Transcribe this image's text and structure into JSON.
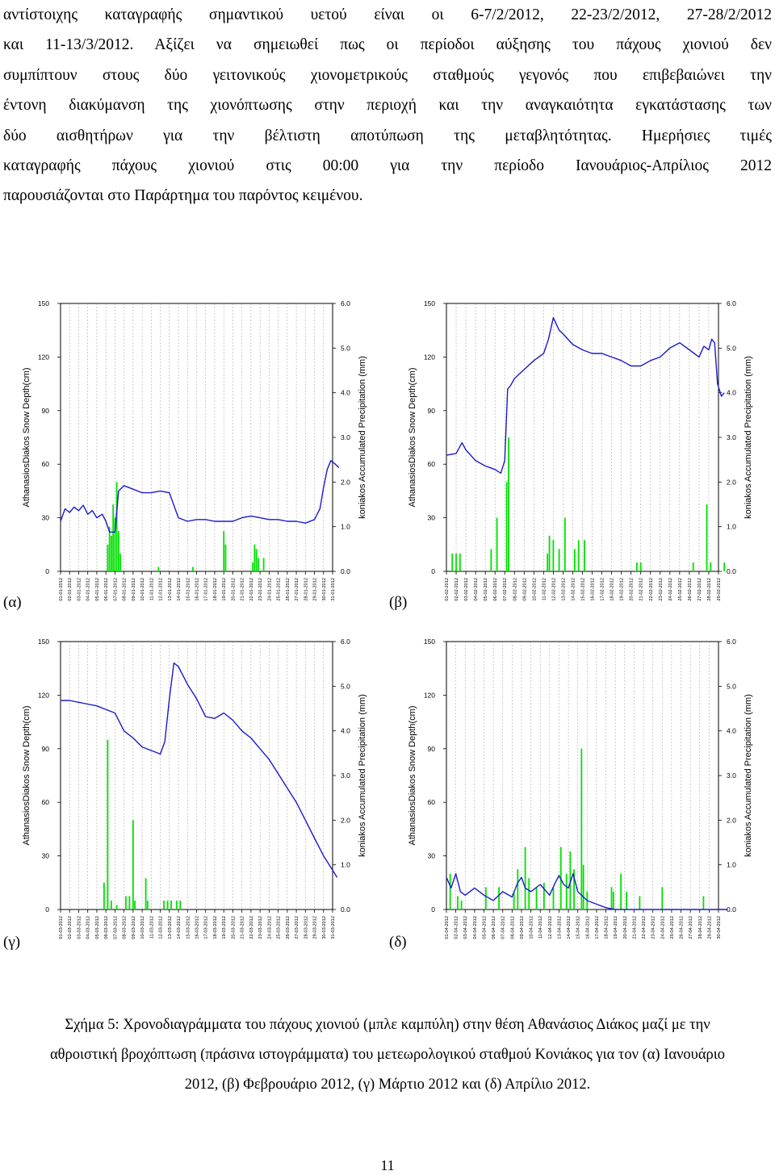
{
  "text": {
    "lines": [
      "αντίστοιχης καταγραφής σημαντικού υετού είναι οι 6-7/2/2012, 22-23/2/2012, 27-28/2/2012",
      "και 11-13/3/2012. Αξίζει να σημειωθεί πως οι περίοδοι αύξησης του πάχους χιονιού δεν",
      "συμπίπτουν στους δύο γειτονικούς χιονομετρικούς σταθμούς γεγονός που επιβεβαιώνει την",
      "έντονη διακύμανση της χιονόπτωσης στην περιοχή και την αναγκαιότητα εγκατάστασης των",
      "δύο αισθητήρων για την βέλτιστη αποτύπωση της μεταβλητότητας. Ημερήσιες τιμές",
      "καταγραφής πάχους χιονιού στις 00:00 για την περίοδο Ιανουάριος-Απρίλιος 2012",
      "παρουσιάζονται στο Παράρτημα του παρόντος κειμένου."
    ]
  },
  "panel_labels": [
    "(α)",
    "(β)",
    "(γ)",
    "(δ)"
  ],
  "caption": {
    "lines": [
      "Σχήμα 5: Χρονοδιαγράμματα του πάχους χιονιού (μπλε καμπύλη) στην θέση Αθανάσιος Διάκος μαζί με την",
      "αθροιστική βροχόπτωση (πράσινα ιστογράμματα) του μετεωρολογικού σταθμού Κονιάκος για τον (α) Ιανουάριο",
      "2012, (β) Φεβρουάριο 2012, (γ) Μάρτιο 2012 και (δ) Απρίλιο 2012."
    ]
  },
  "page_number": "11",
  "colors": {
    "snow": "#1a1acc",
    "precip": "#00e000"
  },
  "chart_data": [
    {
      "type": "line",
      "panel": "(α)",
      "ylabel": "AthanasiosDiakos Snow Depth(cm)",
      "y2label": "koniakos Accumulated Precipitation (mm)",
      "ylim": [
        0,
        150
      ],
      "y2lim": [
        0.0,
        6.0
      ],
      "yticks": [
        "0",
        "30",
        "60",
        "90",
        "120",
        "150"
      ],
      "y2ticks": [
        "0.0",
        "1.0",
        "2.0",
        "3.0",
        "4.0",
        "5.0",
        "6.0"
      ],
      "xticks": [
        "01-01-2012",
        "02-01-2012",
        "03-01-2012",
        "04-01-2012",
        "05-01-2012",
        "06-01-2012",
        "07-01-2012",
        "08-01-2012",
        "09-01-2012",
        "10-01-2012",
        "11-01-2012",
        "12-01-2012",
        "13-01-2012",
        "14-01-2012",
        "15-01-2012",
        "16-01-2012",
        "17-01-2012",
        "18-01-2012",
        "19-01-2012",
        "20-01-2012",
        "21-01-2012",
        "22-01-2012",
        "23-01-2012",
        "24-01-2012",
        "25-01-2012",
        "26-01-2012",
        "27-01-2012",
        "28-01-2012",
        "29-01-2012",
        "30-01-2012",
        "31-01-2012"
      ],
      "snow_depth": [
        [
          0,
          28
        ],
        [
          0.5,
          35
        ],
        [
          1,
          33
        ],
        [
          1.5,
          36
        ],
        [
          2,
          34
        ],
        [
          2.5,
          37
        ],
        [
          3,
          32
        ],
        [
          3.5,
          34
        ],
        [
          4,
          30
        ],
        [
          4.6,
          32
        ],
        [
          5,
          28
        ],
        [
          5.4,
          22
        ],
        [
          6,
          22
        ],
        [
          6.4,
          45
        ],
        [
          7,
          48
        ],
        [
          8,
          46
        ],
        [
          9,
          44
        ],
        [
          10,
          44
        ],
        [
          11,
          45
        ],
        [
          12,
          44
        ],
        [
          12.5,
          37
        ],
        [
          13,
          30
        ],
        [
          14,
          28
        ],
        [
          15,
          29
        ],
        [
          16,
          29
        ],
        [
          17,
          28
        ],
        [
          18,
          28
        ],
        [
          19,
          28
        ],
        [
          20,
          30
        ],
        [
          21,
          31
        ],
        [
          22,
          30
        ],
        [
          23,
          29
        ],
        [
          24,
          29
        ],
        [
          25,
          28
        ],
        [
          26,
          28
        ],
        [
          27,
          27
        ],
        [
          28,
          29
        ],
        [
          28.6,
          35
        ],
        [
          29,
          47
        ],
        [
          29.4,
          57
        ],
        [
          29.8,
          62
        ],
        [
          30.3,
          60
        ],
        [
          30.7,
          58
        ]
      ],
      "precipitation": [
        [
          5.2,
          0.6
        ],
        [
          5.4,
          1.0
        ],
        [
          5.6,
          0.8
        ],
        [
          5.8,
          1.5
        ],
        [
          6,
          1.2
        ],
        [
          6.2,
          2.0
        ],
        [
          6.4,
          0.9
        ],
        [
          6.6,
          0.4
        ],
        [
          10.8,
          0.1
        ],
        [
          14.6,
          0.1
        ],
        [
          18,
          0.9
        ],
        [
          18.2,
          0.6
        ],
        [
          21.2,
          0.2
        ],
        [
          21.4,
          0.6
        ],
        [
          21.6,
          0.5
        ],
        [
          21.8,
          0.3
        ],
        [
          22.4,
          0.3
        ]
      ]
    },
    {
      "type": "line",
      "panel": "(β)",
      "ylabel": "AthanasiosDiakos Snow Depth(cm)",
      "y2label": "koniakos Accumulated Precipitation (mm)",
      "ylim": [
        0,
        150
      ],
      "y2lim": [
        0.0,
        6.0
      ],
      "yticks": [
        "0",
        "30",
        "60",
        "90",
        "120",
        "150"
      ],
      "y2ticks": [
        "0.0",
        "1.0",
        "2.0",
        "3.0",
        "4.0",
        "5.0",
        "6.0"
      ],
      "xticks": [
        "01-02-2012",
        "02-02-2012",
        "03-02-2012",
        "04-02-2012",
        "05-02-2012",
        "06-02-2012",
        "07-02-2012",
        "08-02-2012",
        "09-02-2012",
        "10-02-2012",
        "11-02-2012",
        "12-02-2012",
        "13-02-2012",
        "14-02-2012",
        "15-02-2012",
        "16-02-2012",
        "17-02-2012",
        "18-02-2012",
        "19-02-2012",
        "20-02-2012",
        "21-02-2012",
        "22-02-2012",
        "23-02-2012",
        "24-02-2012",
        "25-02-2012",
        "26-02-2012",
        "27-02-2012",
        "28-02-2012",
        "29-02-2012"
      ],
      "snow_depth": [
        [
          0,
          65
        ],
        [
          1,
          66
        ],
        [
          1.6,
          72
        ],
        [
          2,
          68
        ],
        [
          3,
          62
        ],
        [
          4,
          59
        ],
        [
          5,
          57
        ],
        [
          5.6,
          55
        ],
        [
          6,
          62
        ],
        [
          6.3,
          102
        ],
        [
          6.6,
          104
        ],
        [
          7,
          108
        ],
        [
          8,
          113
        ],
        [
          9,
          118
        ],
        [
          10,
          122
        ],
        [
          10.5,
          130
        ],
        [
          11,
          142
        ],
        [
          11.6,
          135
        ],
        [
          12,
          133
        ],
        [
          13,
          127
        ],
        [
          14,
          124
        ],
        [
          15,
          122
        ],
        [
          16,
          122
        ],
        [
          17,
          120
        ],
        [
          18,
          118
        ],
        [
          19,
          115
        ],
        [
          20,
          115
        ],
        [
          21,
          118
        ],
        [
          22,
          120
        ],
        [
          23,
          125
        ],
        [
          24,
          128
        ],
        [
          25,
          124
        ],
        [
          26,
          120
        ],
        [
          26.5,
          126
        ],
        [
          27,
          124
        ],
        [
          27.3,
          130
        ],
        [
          27.6,
          128
        ],
        [
          27.9,
          105
        ],
        [
          28.3,
          98
        ],
        [
          28.6,
          100
        ]
      ],
      "precipitation": [
        [
          0.6,
          0.4
        ],
        [
          1,
          0.4
        ],
        [
          1.4,
          0.4
        ],
        [
          4.6,
          0.5
        ],
        [
          5.2,
          1.2
        ],
        [
          6.2,
          2.0
        ],
        [
          6.4,
          3.0
        ],
        [
          10.4,
          0.4
        ],
        [
          10.6,
          0.8
        ],
        [
          11,
          0.7
        ],
        [
          11.6,
          0.5
        ],
        [
          12.2,
          1.2
        ],
        [
          13.2,
          0.5
        ],
        [
          13.6,
          0.7
        ],
        [
          14.2,
          0.7
        ],
        [
          19.6,
          0.2
        ],
        [
          20,
          0.2
        ],
        [
          25.4,
          0.2
        ],
        [
          26.8,
          1.5
        ],
        [
          27.2,
          0.2
        ],
        [
          28.6,
          0.2
        ]
      ]
    },
    {
      "type": "line",
      "panel": "(γ)",
      "ylabel": "AthanasiosDiakos Snow Depth(cm)",
      "y2label": "koniakos Accumulated Precipitation (mm)",
      "ylim": [
        0,
        150
      ],
      "y2lim": [
        0.0,
        6.0
      ],
      "yticks": [
        "0",
        "30",
        "60",
        "90",
        "120",
        "150"
      ],
      "y2ticks": [
        "0.0",
        "1.0",
        "2.0",
        "3.0",
        "4.0",
        "5.0",
        "6.0"
      ],
      "xticks": [
        "01-03-2012",
        "02-03-2012",
        "03-03-2012",
        "04-03-2012",
        "05-03-2012",
        "06-03-2012",
        "07-03-2012",
        "08-03-2012",
        "09-03-2012",
        "10-03-2012",
        "11-03-2012",
        "12-03-2012",
        "13-03-2012",
        "14-03-2012",
        "15-03-2012",
        "16-03-2012",
        "17-03-2012",
        "18-03-2012",
        "19-03-2012",
        "20-03-2012",
        "21-03-2012",
        "22-03-2012",
        "23-03-2012",
        "24-03-2012",
        "25-03-2012",
        "26-03-2012",
        "27-03-2012",
        "28-03-2012",
        "29-03-2012",
        "30-03-2012",
        "31-03-2012"
      ],
      "snow_depth": [
        [
          0,
          117
        ],
        [
          1,
          117
        ],
        [
          2,
          116
        ],
        [
          3,
          115
        ],
        [
          4,
          114
        ],
        [
          5,
          112
        ],
        [
          6,
          110
        ],
        [
          7,
          100
        ],
        [
          8,
          96
        ],
        [
          9,
          91
        ],
        [
          10,
          89
        ],
        [
          11,
          87
        ],
        [
          11.5,
          94
        ],
        [
          12,
          118
        ],
        [
          12.5,
          138
        ],
        [
          13,
          136
        ],
        [
          14,
          126
        ],
        [
          15,
          118
        ],
        [
          16,
          108
        ],
        [
          17,
          107
        ],
        [
          18,
          110
        ],
        [
          19,
          106
        ],
        [
          20,
          100
        ],
        [
          21,
          96
        ],
        [
          22,
          90
        ],
        [
          23,
          84
        ],
        [
          24,
          76
        ],
        [
          25,
          68
        ],
        [
          26,
          60
        ],
        [
          27,
          50
        ],
        [
          28,
          40
        ],
        [
          29,
          30
        ],
        [
          30,
          22
        ],
        [
          30.5,
          18
        ]
      ],
      "precipitation": [
        [
          4.8,
          0.6
        ],
        [
          5.2,
          3.8
        ],
        [
          5.6,
          0.2
        ],
        [
          6.2,
          0.1
        ],
        [
          7.2,
          0.3
        ],
        [
          7.6,
          0.3
        ],
        [
          8,
          2.0
        ],
        [
          8.2,
          0.2
        ],
        [
          9.4,
          0.7
        ],
        [
          9.6,
          0.2
        ],
        [
          11.4,
          0.2
        ],
        [
          11.8,
          0.2
        ],
        [
          12.2,
          0.2
        ],
        [
          12.8,
          0.2
        ],
        [
          13.2,
          0.2
        ]
      ]
    },
    {
      "type": "line",
      "panel": "(δ)",
      "ylabel": "AthanasiosDiakos Snow Depth(cm)",
      "y2label": "koniakos Accumulated Precipitation (mm)",
      "ylim": [
        0,
        150
      ],
      "y2lim": [
        0.0,
        6.0
      ],
      "yticks": [
        "0",
        "30",
        "60",
        "90",
        "120",
        "150"
      ],
      "y2ticks": [
        "0.0",
        "1.0",
        "2.0",
        "3.0",
        "4.0",
        "5.0",
        "6.0"
      ],
      "xticks": [
        "01-04-2012",
        "02-04-2012",
        "03-04-2012",
        "04-04-2012",
        "05-04-2012",
        "06-04-2012",
        "07-04-2012",
        "08-04-2012",
        "09-04-2012",
        "10-04-2012",
        "11-04-2012",
        "12-04-2012",
        "13-04-2012",
        "14-04-2012",
        "15-04-2012",
        "16-04-2012",
        "17-04-2012",
        "18-04-2012",
        "19-04-2012",
        "20-04-2012",
        "21-04-2012",
        "22-04-2012",
        "23-04-2012",
        "24-04-2012",
        "25-04-2012",
        "26-04-2012",
        "27-04-2012",
        "28-04-2012",
        "29-04-2012",
        "30-04-2012"
      ],
      "snow_depth": [
        [
          0,
          18
        ],
        [
          0.5,
          12
        ],
        [
          1,
          20
        ],
        [
          1.5,
          10
        ],
        [
          2,
          8
        ],
        [
          3,
          12
        ],
        [
          4,
          8
        ],
        [
          5,
          5
        ],
        [
          6,
          10
        ],
        [
          7,
          7
        ],
        [
          7.6,
          15
        ],
        [
          8,
          18
        ],
        [
          8.4,
          12
        ],
        [
          9,
          10
        ],
        [
          10,
          14
        ],
        [
          11,
          8
        ],
        [
          11.6,
          15
        ],
        [
          12,
          19
        ],
        [
          12.5,
          14
        ],
        [
          13,
          12
        ],
        [
          13.5,
          20
        ],
        [
          14,
          10
        ],
        [
          15,
          5
        ],
        [
          16,
          3
        ],
        [
          17,
          1
        ],
        [
          18,
          0
        ],
        [
          20,
          0
        ],
        [
          25,
          0
        ],
        [
          30,
          0
        ]
      ],
      "precipitation": [
        [
          0.4,
          0.8
        ],
        [
          1.2,
          0.3
        ],
        [
          1.6,
          0.2
        ],
        [
          4.2,
          0.5
        ],
        [
          5.6,
          0.5
        ],
        [
          7.2,
          0.4
        ],
        [
          7.6,
          0.9
        ],
        [
          8.4,
          1.4
        ],
        [
          8.8,
          0.7
        ],
        [
          9.6,
          0.5
        ],
        [
          10.4,
          0.6
        ],
        [
          11.4,
          0.5
        ],
        [
          12.2,
          1.4
        ],
        [
          12.8,
          0.8
        ],
        [
          13.2,
          1.3
        ],
        [
          13.6,
          0.9
        ],
        [
          14.4,
          3.6
        ],
        [
          14.6,
          1.0
        ],
        [
          15,
          0.4
        ],
        [
          17.6,
          0.5
        ],
        [
          17.8,
          0.4
        ],
        [
          18.6,
          0.8
        ],
        [
          19.2,
          0.4
        ],
        [
          20.6,
          0.3
        ],
        [
          23,
          0.5
        ],
        [
          27.4,
          0.3
        ]
      ]
    }
  ]
}
